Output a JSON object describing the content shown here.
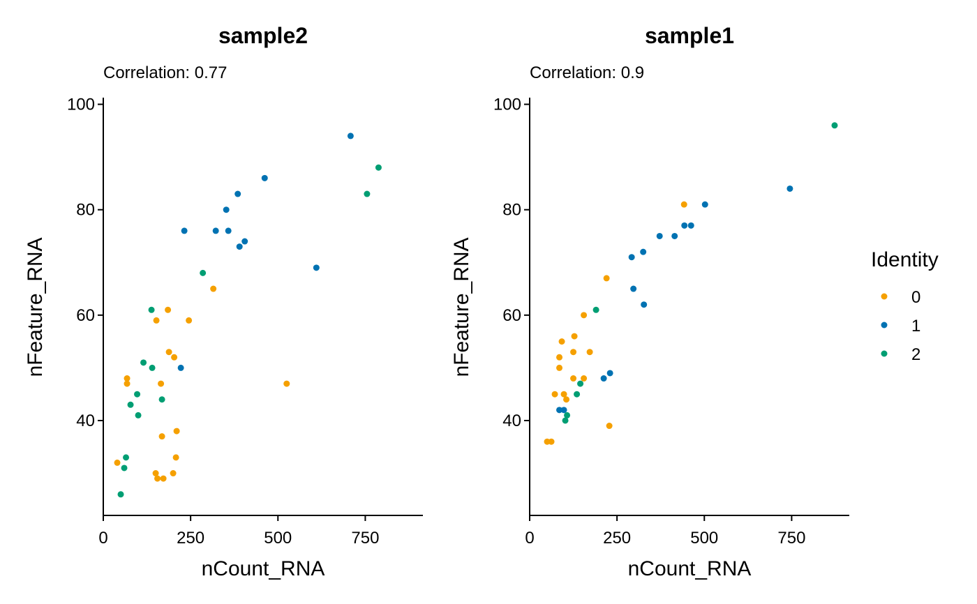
{
  "chart_data": [
    {
      "type": "scatter",
      "title": "sample2",
      "subtitle": "Correlation: 0.77",
      "xlabel": "nCount_RNA",
      "ylabel": "nFeature_RNA",
      "xlim": [
        0,
        915
      ],
      "ylim": [
        22,
        101
      ],
      "xticks": [
        0,
        250,
        500,
        750
      ],
      "yticks": [
        40,
        60,
        80,
        100
      ],
      "series": [
        {
          "name": "0",
          "points": [
            [
              40,
              32
            ],
            [
              68,
              48
            ],
            [
              68,
              47
            ],
            [
              150,
              30
            ],
            [
              155,
              29
            ],
            [
              152,
              59
            ],
            [
              165,
              47
            ],
            [
              168,
              37
            ],
            [
              172,
              29
            ],
            [
              185,
              61
            ],
            [
              188,
              53
            ],
            [
              200,
              30
            ],
            [
              203,
              52
            ],
            [
              208,
              33
            ],
            [
              210,
              38
            ],
            [
              245,
              59
            ],
            [
              315,
              65
            ],
            [
              525,
              47
            ]
          ]
        },
        {
          "name": "1",
          "points": [
            [
              222,
              50
            ],
            [
              232,
              76
            ],
            [
              322,
              76
            ],
            [
              352,
              80
            ],
            [
              358,
              76
            ],
            [
              385,
              83
            ],
            [
              390,
              73
            ],
            [
              405,
              74
            ],
            [
              462,
              86
            ],
            [
              610,
              69
            ],
            [
              708,
              94
            ]
          ]
        },
        {
          "name": "2",
          "points": [
            [
              50,
              26
            ],
            [
              60,
              31
            ],
            [
              65,
              33
            ],
            [
              78,
              43
            ],
            [
              97,
              45
            ],
            [
              100,
              41
            ],
            [
              115,
              51
            ],
            [
              138,
              61
            ],
            [
              140,
              50
            ],
            [
              168,
              44
            ],
            [
              285,
              68
            ],
            [
              755,
              83
            ],
            [
              788,
              88
            ]
          ]
        }
      ]
    },
    {
      "type": "scatter",
      "title": "sample1",
      "subtitle": "Correlation: 0.9",
      "xlabel": "nCount_RNA",
      "ylabel": "nFeature_RNA",
      "xlim": [
        0,
        915
      ],
      "ylim": [
        22,
        101
      ],
      "xticks": [
        0,
        250,
        500,
        750
      ],
      "yticks": [
        40,
        60,
        80,
        100
      ],
      "series": [
        {
          "name": "0",
          "points": [
            [
              50,
              36
            ],
            [
              62,
              36
            ],
            [
              72,
              45
            ],
            [
              85,
              50
            ],
            [
              85,
              52
            ],
            [
              92,
              55
            ],
            [
              98,
              45
            ],
            [
              105,
              44
            ],
            [
              125,
              48
            ],
            [
              125,
              53
            ],
            [
              128,
              56
            ],
            [
              155,
              60
            ],
            [
              155,
              48
            ],
            [
              172,
              53
            ],
            [
              220,
              67
            ],
            [
              228,
              39
            ],
            [
              442,
              81
            ]
          ]
        },
        {
          "name": "1",
          "points": [
            [
              85,
              42
            ],
            [
              98,
              42
            ],
            [
              212,
              48
            ],
            [
              230,
              49
            ],
            [
              292,
              71
            ],
            [
              297,
              65
            ],
            [
              325,
              72
            ],
            [
              327,
              62
            ],
            [
              372,
              75
            ],
            [
              415,
              75
            ],
            [
              443,
              77
            ],
            [
              462,
              77
            ],
            [
              502,
              81
            ],
            [
              745,
              84
            ]
          ]
        },
        {
          "name": "2",
          "points": [
            [
              102,
              40
            ],
            [
              107,
              41
            ],
            [
              135,
              45
            ],
            [
              145,
              47
            ],
            [
              190,
              61
            ],
            [
              873,
              96
            ]
          ]
        }
      ]
    }
  ],
  "legend": {
    "title": "Identity",
    "position": "right",
    "items": [
      {
        "label": "0",
        "color": "#F5A000"
      },
      {
        "label": "1",
        "color": "#0072B2"
      },
      {
        "label": "2",
        "color": "#009E73"
      }
    ]
  }
}
